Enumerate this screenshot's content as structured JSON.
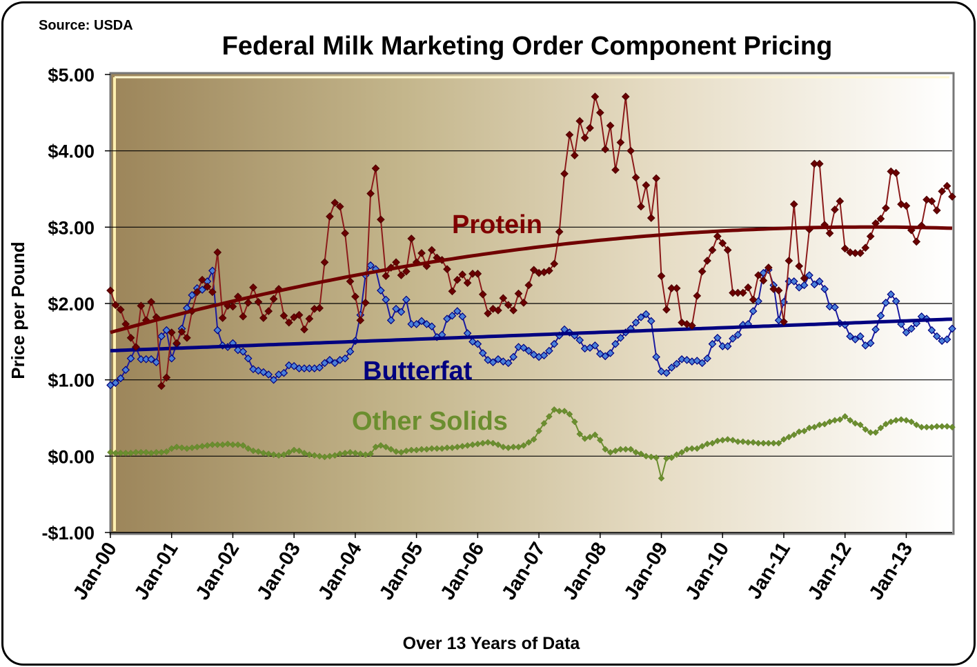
{
  "chart_data": {
    "type": "line",
    "title": "Federal Milk Marketing Order Component Pricing",
    "source_note": "Source: USDA",
    "xlabel": "Over 13 Years of Data",
    "ylabel": "Price per Pound",
    "x_start": "Jan-00",
    "x_end": "Oct-13",
    "x_frequency": "monthly",
    "x_tick_labels": [
      "Jan-00",
      "Jan-01",
      "Jan-02",
      "Jan-03",
      "Jan-04",
      "Jan-05",
      "Jan-06",
      "Jan-07",
      "Jan-08",
      "Jan-09",
      "Jan-10",
      "Jan-11",
      "Jan-12",
      "Jan-13"
    ],
    "ylim": [
      -1,
      5
    ],
    "y_tick_values": [
      -1,
      0,
      1,
      2,
      3,
      4,
      5
    ],
    "y_tick_labels": [
      "-$1.00",
      "$0.00",
      "$1.00",
      "$2.00",
      "$3.00",
      "$4.00",
      "$5.00"
    ],
    "grid": "horizontal",
    "legend": "inline labels",
    "series": [
      {
        "name": "Protein",
        "color": "#8B1A1A",
        "marker_color": "#6B0000",
        "marker": "diamond",
        "trendline": {
          "type": "polynomial",
          "order": 2,
          "color": "#700000"
        },
        "values": [
          2.17,
          1.98,
          1.92,
          1.73,
          1.55,
          1.43,
          1.97,
          1.78,
          2.02,
          1.82,
          0.92,
          1.03,
          1.62,
          1.48,
          1.63,
          1.55,
          1.9,
          2.15,
          2.31,
          2.22,
          2.15,
          2.67,
          1.81,
          1.97,
          1.96,
          2.09,
          1.83,
          2.01,
          2.21,
          2.02,
          1.81,
          1.9,
          2.06,
          2.19,
          1.84,
          1.75,
          1.82,
          1.85,
          1.66,
          1.8,
          1.93,
          1.94,
          2.54,
          3.14,
          3.32,
          3.27,
          2.92,
          2.29,
          2.09,
          1.78,
          2.01,
          3.44,
          3.77,
          3.1,
          2.36,
          2.47,
          2.54,
          2.37,
          2.42,
          2.85,
          2.54,
          2.66,
          2.49,
          2.7,
          2.6,
          2.57,
          2.45,
          2.16,
          2.31,
          2.38,
          2.27,
          2.39,
          2.39,
          2.12,
          1.87,
          1.93,
          1.91,
          2.07,
          1.98,
          1.91,
          2.13,
          2.01,
          2.24,
          2.44,
          2.4,
          2.41,
          2.43,
          2.52,
          2.94,
          3.7,
          4.21,
          3.94,
          4.39,
          4.17,
          4.3,
          4.71,
          4.5,
          4.02,
          4.33,
          3.75,
          4.11,
          4.71,
          4.0,
          3.65,
          3.27,
          3.55,
          3.12,
          3.64,
          2.36,
          1.92,
          2.2,
          2.2,
          1.75,
          1.73,
          1.71,
          2.1,
          2.42,
          2.56,
          2.7,
          2.88,
          2.79,
          2.7,
          2.14,
          2.14,
          2.14,
          2.21,
          2.05,
          2.37,
          2.3,
          2.47,
          2.19,
          2.17,
          1.76,
          2.56,
          3.3,
          2.49,
          2.33,
          2.97,
          3.83,
          3.83,
          3.03,
          2.92,
          3.23,
          3.34,
          2.72,
          2.67,
          2.66,
          2.66,
          2.73,
          2.88,
          3.05,
          3.11,
          3.25,
          3.73,
          3.71,
          3.3,
          3.28,
          2.96,
          2.81,
          3.02,
          3.36,
          3.34,
          3.22,
          3.47,
          3.54,
          3.4
        ]
      },
      {
        "name": "Butterfat",
        "color": "#1A1AA0",
        "marker_color": "#4A80D8",
        "marker": "diamond",
        "trendline": {
          "type": "linear",
          "color": "#000080"
        },
        "values": [
          0.93,
          0.96,
          1.02,
          1.13,
          1.28,
          1.42,
          1.27,
          1.27,
          1.27,
          1.23,
          1.57,
          1.65,
          1.28,
          1.47,
          1.67,
          1.94,
          2.11,
          2.2,
          2.18,
          2.29,
          2.43,
          1.65,
          1.45,
          1.43,
          1.48,
          1.39,
          1.37,
          1.28,
          1.14,
          1.12,
          1.1,
          1.07,
          1.0,
          1.07,
          1.09,
          1.19,
          1.18,
          1.15,
          1.15,
          1.15,
          1.15,
          1.16,
          1.22,
          1.26,
          1.22,
          1.26,
          1.28,
          1.37,
          1.51,
          1.85,
          2.37,
          2.5,
          2.45,
          2.17,
          2.05,
          1.78,
          1.93,
          1.89,
          2.05,
          1.73,
          1.73,
          1.77,
          1.73,
          1.7,
          1.56,
          1.59,
          1.8,
          1.84,
          1.9,
          1.83,
          1.61,
          1.5,
          1.47,
          1.35,
          1.26,
          1.23,
          1.27,
          1.24,
          1.22,
          1.3,
          1.43,
          1.42,
          1.38,
          1.33,
          1.3,
          1.32,
          1.38,
          1.47,
          1.58,
          1.66,
          1.62,
          1.58,
          1.52,
          1.41,
          1.42,
          1.45,
          1.34,
          1.31,
          1.35,
          1.47,
          1.55,
          1.62,
          1.67,
          1.75,
          1.82,
          1.86,
          1.77,
          1.3,
          1.11,
          1.09,
          1.16,
          1.21,
          1.27,
          1.26,
          1.24,
          1.25,
          1.22,
          1.28,
          1.47,
          1.55,
          1.44,
          1.44,
          1.54,
          1.59,
          1.72,
          1.73,
          1.9,
          2.03,
          2.4,
          2.44,
          2.24,
          1.78,
          2.02,
          2.29,
          2.29,
          2.21,
          2.24,
          2.37,
          2.25,
          2.29,
          2.19,
          1.96,
          1.95,
          1.74,
          1.72,
          1.57,
          1.53,
          1.57,
          1.45,
          1.48,
          1.66,
          1.84,
          2.01,
          2.12,
          2.03,
          1.73,
          1.62,
          1.67,
          1.74,
          1.83,
          1.8,
          1.65,
          1.57,
          1.51,
          1.53,
          1.67
        ]
      },
      {
        "name": "Other Solids",
        "color": "#6B8E2F",
        "marker_color": "#6B8E2F",
        "marker": "diamond",
        "values": [
          0.05,
          0.04,
          0.04,
          0.04,
          0.04,
          0.05,
          0.05,
          0.05,
          0.04,
          0.05,
          0.05,
          0.06,
          0.1,
          0.12,
          0.11,
          0.1,
          0.11,
          0.12,
          0.13,
          0.14,
          0.15,
          0.15,
          0.15,
          0.16,
          0.15,
          0.15,
          0.14,
          0.1,
          0.07,
          0.06,
          0.04,
          0.03,
          0.02,
          0.01,
          0.02,
          0.05,
          0.08,
          0.07,
          0.04,
          0.02,
          0.01,
          0.0,
          -0.01,
          0.0,
          0.01,
          0.03,
          0.04,
          0.05,
          0.04,
          0.03,
          0.02,
          0.03,
          0.12,
          0.14,
          0.12,
          0.09,
          0.06,
          0.05,
          0.07,
          0.08,
          0.08,
          0.09,
          0.09,
          0.1,
          0.1,
          0.1,
          0.11,
          0.11,
          0.12,
          0.13,
          0.14,
          0.15,
          0.16,
          0.17,
          0.18,
          0.17,
          0.15,
          0.12,
          0.11,
          0.12,
          0.12,
          0.14,
          0.18,
          0.22,
          0.33,
          0.43,
          0.52,
          0.61,
          0.59,
          0.59,
          0.55,
          0.45,
          0.29,
          0.23,
          0.25,
          0.28,
          0.21,
          0.09,
          0.05,
          0.07,
          0.09,
          0.09,
          0.09,
          0.05,
          0.03,
          0.0,
          -0.01,
          -0.02,
          -0.29,
          -0.03,
          -0.02,
          0.02,
          0.05,
          0.09,
          0.1,
          0.1,
          0.13,
          0.16,
          0.17,
          0.2,
          0.21,
          0.22,
          0.21,
          0.19,
          0.19,
          0.18,
          0.18,
          0.17,
          0.17,
          0.17,
          0.17,
          0.17,
          0.22,
          0.25,
          0.28,
          0.32,
          0.33,
          0.37,
          0.38,
          0.41,
          0.42,
          0.45,
          0.47,
          0.48,
          0.52,
          0.47,
          0.43,
          0.41,
          0.35,
          0.31,
          0.31,
          0.37,
          0.42,
          0.45,
          0.47,
          0.48,
          0.47,
          0.45,
          0.41,
          0.38,
          0.38,
          0.38,
          0.39,
          0.39,
          0.39,
          0.38
        ]
      }
    ]
  }
}
